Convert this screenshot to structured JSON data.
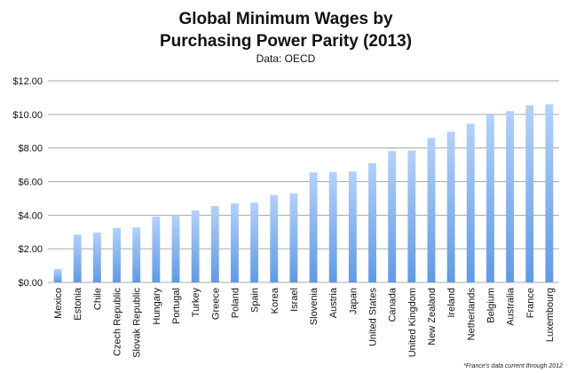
{
  "chart_data": {
    "type": "bar",
    "title_lines": [
      "Global Minimum Wages by",
      "Purchasing Power Parity (2013)"
    ],
    "subtitle": "Data: OECD",
    "footnote": "*France's data current through 2012",
    "categories": [
      "Mexico",
      "Estonia",
      "Chile",
      "Czech Republic",
      "Slovak Republic",
      "Hungary",
      "Portugal",
      "Turkey",
      "Greece",
      "Poland",
      "Spain",
      "Korea",
      "Israel",
      "Slovenia",
      "Austria",
      "Japan",
      "United States",
      "Canada",
      "United Kingdom",
      "New Zealand",
      "Ireland",
      "Netherlands",
      "Belgium",
      "Australia",
      "France",
      "Luxembourg"
    ],
    "values": [
      0.8,
      2.85,
      2.97,
      3.25,
      3.27,
      3.92,
      4.0,
      4.28,
      4.55,
      4.7,
      4.75,
      5.2,
      5.3,
      6.55,
      6.57,
      6.6,
      7.1,
      7.82,
      7.85,
      8.6,
      8.97,
      9.45,
      9.97,
      10.2,
      10.55,
      10.6
    ],
    "yticks": [
      "$0.00",
      "$2.00",
      "$4.00",
      "$6.00",
      "$8.00",
      "$10.00",
      "$12.00"
    ],
    "ylim": [
      0,
      12
    ],
    "grid": true,
    "legend": "none",
    "colors": {
      "bar_top": "#b3d1fa",
      "bar_bottom": "#5e9ae8",
      "grid": "#a8a8a8"
    }
  }
}
